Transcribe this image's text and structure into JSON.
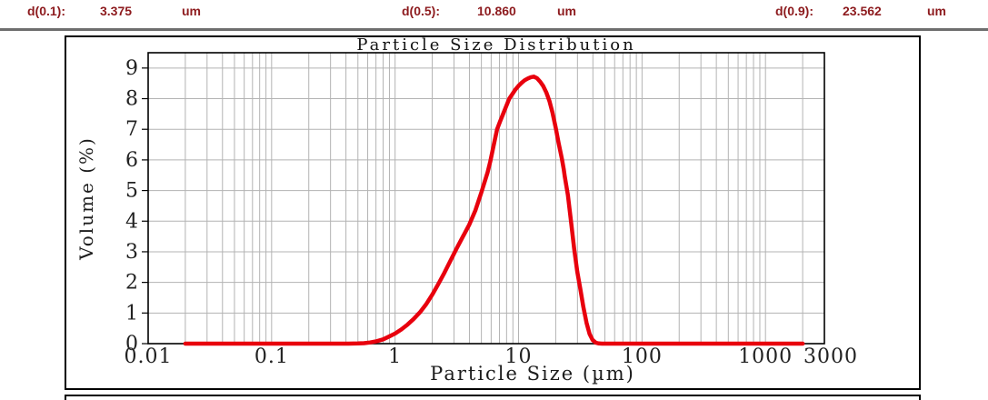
{
  "header": {
    "items": [
      {
        "label": "d(0.1):",
        "value": "3.375",
        "unit": "um"
      },
      {
        "label": "d(0.5):",
        "value": "10.860",
        "unit": "um"
      },
      {
        "label": "d(0.9):",
        "value": "23.562",
        "unit": "um"
      }
    ],
    "text_color": "#8d1b1e"
  },
  "chart_data": {
    "type": "line",
    "title": "Particle Size Distribution",
    "xlabel": "Particle Size (µm)",
    "ylabel": "Volume (%)",
    "x_scale": "log",
    "xlim": [
      0.01,
      3000
    ],
    "ylim": [
      0,
      9.5
    ],
    "x_tick_values": [
      0.01,
      0.1,
      1,
      10,
      100,
      1000,
      3000
    ],
    "x_tick_labels": [
      "0.01",
      "0.1",
      "1",
      "10",
      "100",
      "1000",
      "3000"
    ],
    "y_tick_values": [
      0,
      1,
      2,
      3,
      4,
      5,
      6,
      7,
      8,
      9
    ],
    "grid": true,
    "legend": "none",
    "colors": {
      "curve": "#e8000d",
      "grid": "#b3b3b3",
      "axis": "#000000",
      "tick_text": "#222222"
    },
    "series": [
      {
        "name": "volume-distribution",
        "color": "#e8000d",
        "points": [
          [
            0.02,
            0
          ],
          [
            0.03,
            0
          ],
          [
            0.05,
            0
          ],
          [
            0.08,
            0
          ],
          [
            0.13,
            0
          ],
          [
            0.2,
            0
          ],
          [
            0.3,
            0
          ],
          [
            0.42,
            0
          ],
          [
            0.5,
            0.005
          ],
          [
            0.56,
            0.015
          ],
          [
            0.63,
            0.04
          ],
          [
            0.71,
            0.08
          ],
          [
            0.8,
            0.14
          ],
          [
            0.89,
            0.23
          ],
          [
            1.0,
            0.33
          ],
          [
            1.12,
            0.46
          ],
          [
            1.26,
            0.62
          ],
          [
            1.41,
            0.8
          ],
          [
            1.59,
            1.02
          ],
          [
            1.78,
            1.28
          ],
          [
            2.0,
            1.6
          ],
          [
            2.24,
            1.95
          ],
          [
            2.51,
            2.32
          ],
          [
            2.82,
            2.72
          ],
          [
            3.16,
            3.12
          ],
          [
            3.55,
            3.5
          ],
          [
            3.98,
            3.88
          ],
          [
            4.47,
            4.35
          ],
          [
            5.01,
            4.95
          ],
          [
            5.62,
            5.6
          ],
          [
            5.9,
            5.95
          ],
          [
            6.31,
            6.5
          ],
          [
            6.7,
            7.0
          ],
          [
            7.08,
            7.25
          ],
          [
            7.5,
            7.5
          ],
          [
            7.94,
            7.75
          ],
          [
            8.41,
            8.0
          ],
          [
            8.91,
            8.15
          ],
          [
            9.44,
            8.3
          ],
          [
            10,
            8.42
          ],
          [
            10.6,
            8.52
          ],
          [
            11.2,
            8.6
          ],
          [
            11.9,
            8.66
          ],
          [
            12.6,
            8.7
          ],
          [
            13.3,
            8.72
          ],
          [
            14.1,
            8.67
          ],
          [
            15,
            8.55
          ],
          [
            15.8,
            8.42
          ],
          [
            16.8,
            8.2
          ],
          [
            17.8,
            7.92
          ],
          [
            18.8,
            7.55
          ],
          [
            20,
            7.05
          ],
          [
            21.1,
            6.55
          ],
          [
            22.4,
            6.05
          ],
          [
            23.2,
            5.7
          ],
          [
            23.7,
            5.45
          ],
          [
            25.1,
            4.85
          ],
          [
            26.6,
            4.0
          ],
          [
            28.2,
            3.1
          ],
          [
            29.9,
            2.35
          ],
          [
            31.6,
            1.8
          ],
          [
            33.5,
            1.2
          ],
          [
            35.5,
            0.68
          ],
          [
            37.6,
            0.32
          ],
          [
            39.8,
            0.12
          ],
          [
            42.2,
            0.03
          ],
          [
            44.7,
            0.005
          ],
          [
            47.4,
            0
          ],
          [
            56.2,
            0
          ],
          [
            79.4,
            0
          ],
          [
            112,
            0
          ],
          [
            200,
            0
          ],
          [
            355,
            0
          ],
          [
            631,
            0
          ],
          [
            1122,
            0
          ],
          [
            1585,
            0
          ],
          [
            2000,
            0
          ]
        ]
      }
    ]
  }
}
